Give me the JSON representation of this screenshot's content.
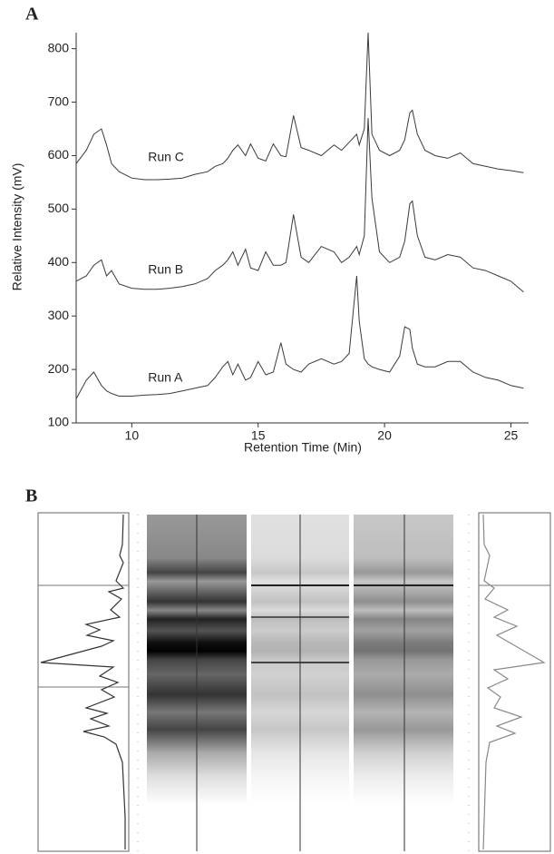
{
  "chart_data": {
    "type": "line",
    "panel_label": "A",
    "xlabel": "Retention Time (Min)",
    "ylabel": "Relative Intensity (mV)",
    "x": [
      7.8,
      8.2,
      8.5,
      8.8,
      9.0,
      9.2,
      9.5,
      10,
      10.5,
      11,
      11.5,
      12,
      12.5,
      13,
      13.3,
      13.6,
      13.8,
      14.0,
      14.2,
      14.5,
      14.7,
      15.0,
      15.3,
      15.6,
      15.9,
      16.1,
      16.4,
      16.7,
      17.0,
      17.5,
      18.0,
      18.3,
      18.6,
      18.9,
      19.0,
      19.2,
      19.35,
      19.5,
      19.8,
      20.2,
      20.6,
      20.8,
      21.0,
      21.1,
      21.3,
      21.6,
      22.0,
      22.5,
      23.0,
      23.5,
      24.0,
      24.5,
      25.0,
      25.5
    ],
    "series": [
      {
        "name": "Run C",
        "color": "#3a3a3a",
        "values": [
          585,
          610,
          640,
          650,
          620,
          585,
          570,
          558,
          555,
          555,
          556,
          558,
          565,
          570,
          580,
          585,
          595,
          610,
          620,
          600,
          622,
          595,
          590,
          622,
          600,
          598,
          675,
          615,
          610,
          600,
          620,
          610,
          625,
          640,
          620,
          650,
          830,
          640,
          610,
          600,
          610,
          630,
          680,
          685,
          640,
          610,
          600,
          595,
          605,
          585,
          580,
          575,
          572,
          568
        ]
      },
      {
        "name": "Run B",
        "color": "#3a3a3a",
        "values": [
          365,
          375,
          395,
          405,
          375,
          385,
          360,
          352,
          350,
          350,
          352,
          355,
          360,
          370,
          385,
          395,
          405,
          420,
          395,
          425,
          390,
          385,
          420,
          395,
          395,
          400,
          490,
          410,
          400,
          430,
          420,
          400,
          410,
          430,
          415,
          450,
          670,
          520,
          420,
          400,
          410,
          440,
          510,
          515,
          450,
          410,
          405,
          415,
          410,
          390,
          385,
          375,
          365,
          345
        ]
      },
      {
        "name": "Run A",
        "color": "#3a3a3a",
        "values": [
          145,
          180,
          195,
          170,
          160,
          155,
          150,
          150,
          152,
          153,
          155,
          160,
          165,
          170,
          185,
          205,
          215,
          190,
          210,
          180,
          185,
          215,
          190,
          195,
          250,
          210,
          200,
          195,
          210,
          220,
          210,
          215,
          230,
          375,
          290,
          220,
          210,
          205,
          200,
          195,
          225,
          280,
          275,
          240,
          210,
          205,
          205,
          215,
          215,
          195,
          185,
          180,
          170,
          165
        ]
      }
    ],
    "xlim": [
      7.8,
      25.7
    ],
    "ylim": [
      100,
      830
    ],
    "xticks": [
      10,
      15,
      20,
      25
    ],
    "yticks": [
      100,
      200,
      300,
      400,
      500,
      600,
      700,
      800
    ],
    "grid": false
  },
  "panel_b": {
    "label": "B"
  }
}
